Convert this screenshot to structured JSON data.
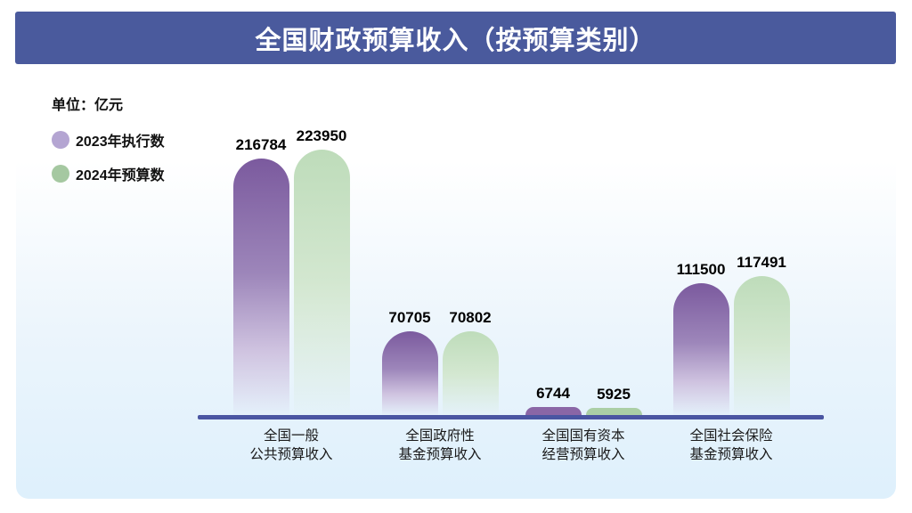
{
  "header": {
    "title": "全国财政预算收入（按预算类别）",
    "background": "#4a5a9d",
    "text_color": "#ffffff"
  },
  "legend": {
    "unit_label": "单位：亿元",
    "items": [
      {
        "label": "2023年执行数",
        "color": "#b4a5d2"
      },
      {
        "label": "2024年预算数",
        "color": "#a5c8a1"
      }
    ]
  },
  "chart_data": {
    "type": "bar",
    "title": "全国财政预算收入（按预算类别）",
    "unit": "亿元",
    "categories": [
      [
        "全国一般",
        "公共预算收入"
      ],
      [
        "全国政府性",
        "基金预算收入"
      ],
      [
        "全国国有资本",
        "经营预算收入"
      ],
      [
        "全国社会保险",
        "基金预算收入"
      ]
    ],
    "series": [
      {
        "name": "2023年执行数",
        "values": [
          216784,
          70705,
          6744,
          111500
        ],
        "bar_color_top": "#7b5a9e"
      },
      {
        "name": "2024年预算数",
        "values": [
          223950,
          70802,
          5925,
          117491
        ],
        "bar_color_top": "#bedcba"
      }
    ],
    "value_labels_shown": true,
    "legend_position": "top-left",
    "grid": false,
    "axis_color": "#4a55a2",
    "ylim": [
      0,
      230000
    ]
  }
}
